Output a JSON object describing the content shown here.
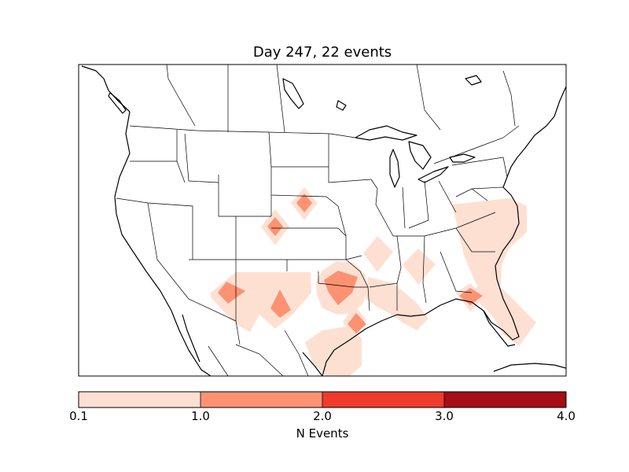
{
  "title": "Day 247, 22 events",
  "colorbar": {
    "label": "N Events",
    "ticks": [
      "0.1",
      "1.0",
      "2.0",
      "3.0",
      "4.0"
    ],
    "bins": [
      {
        "range": "0.1-1.0",
        "color": "#fee0d2"
      },
      {
        "range": "1.0-2.0",
        "color": "#fc9272"
      },
      {
        "range": "2.0-3.0",
        "color": "#ef3b2c"
      },
      {
        "range": "3.0-4.0",
        "color": "#a50f15"
      }
    ]
  },
  "chart_data": {
    "type": "heatmap",
    "title": "Day 247, 22 events",
    "colorbar_label": "N Events",
    "colorbar_range": [
      0.1,
      4.0
    ],
    "colorbar_ticks": [
      0.1,
      1.0,
      2.0,
      3.0,
      4.0
    ],
    "region": "Continental United States",
    "max_level_shown": "1.0-2.0"
  },
  "colors": {
    "low": "#fee0d2",
    "mid": "#fc9272",
    "coast": "#000000"
  }
}
